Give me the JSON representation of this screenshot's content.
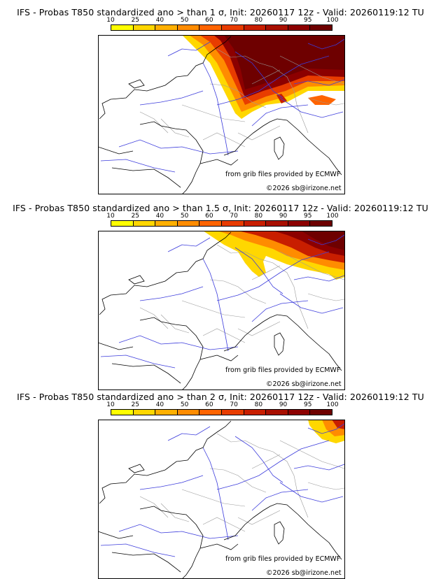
{
  "colors": {
    "scale": [
      "#ffff00",
      "#ffd700",
      "#ffb000",
      "#ff8c00",
      "#ff6400",
      "#e83c00",
      "#c81e00",
      "#a80f00",
      "#8c0000",
      "#6e0000"
    ],
    "coast": "#000000",
    "borders": "#9a9a9a",
    "rivers": "#3c3cdc"
  },
  "legend": {
    "ticks": [
      "10",
      "25",
      "40",
      "50",
      "60",
      "70",
      "80",
      "90",
      "95",
      "100"
    ]
  },
  "panels": [
    {
      "title": "IFS - Probas T850  standardized ano > than 1 σ, Init: 20260117 12z - Valid: 20260119:12 TU",
      "credit_source": "from grib files provided by ECMWF",
      "credit_copy": "©2026 sb@irizone.net",
      "field_level": "high"
    },
    {
      "title": "IFS - Probas T850  standardized ano > than 1.5 σ, Init: 20260117 12z - Valid: 20260119:12 TU",
      "credit_source": "from grib files provided by ECMWF",
      "credit_copy": "©2026 sb@irizone.net",
      "field_level": "medium"
    },
    {
      "title": "IFS - Probas T850  standardized ano > than 2 σ, Init: 20260117 12z - Valid: 20260119:12 TU",
      "credit_source": "from grib files provided by ECMWF",
      "credit_copy": "©2026 sb@irizone.net",
      "field_level": "low"
    }
  ]
}
